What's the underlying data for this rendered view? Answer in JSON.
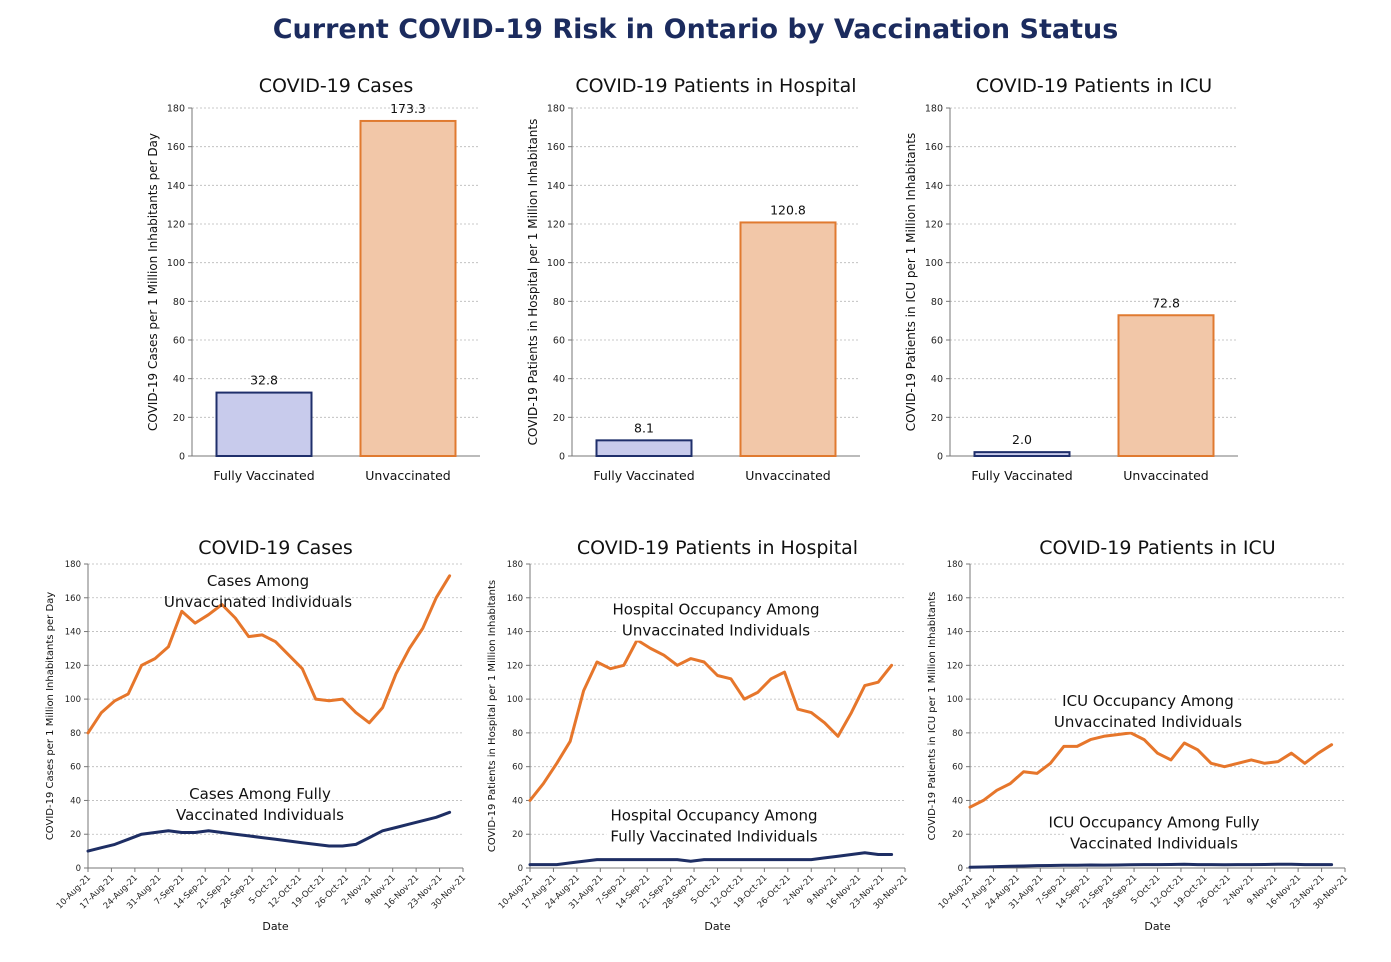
{
  "page": {
    "title": "Current COVID-19 Risk in Ontario by Vaccination Status"
  },
  "colors": {
    "vaccinated_fill": "#c8cbec",
    "vaccinated_stroke": "#1f2f6b",
    "unvaccinated_fill": "#f2c7a8",
    "unvaccinated_stroke": "#e07a30",
    "vaccinated_line": "#1e2e64",
    "unvaccinated_line": "#e6762b"
  },
  "chart_data": [
    {
      "type": "bar",
      "title": "COVID-19 Cases",
      "ylabel": "COVID-19 Cases per 1 Million Inhabitants per Day",
      "categories": [
        "Fully Vaccinated",
        "Unvaccinated"
      ],
      "values": [
        32.8,
        173.3
      ],
      "value_labels": [
        "32.8",
        "173.3"
      ],
      "ylim": [
        0,
        180
      ],
      "yticks": [
        "0",
        "20",
        "40",
        "60",
        "80",
        "100",
        "120",
        "140",
        "160",
        "180"
      ],
      "grid": true
    },
    {
      "type": "bar",
      "title": "COVID-19 Patients in Hospital",
      "ylabel": "COVID-19 Patients in Hospital per 1 Million Inhabitants",
      "categories": [
        "Fully Vaccinated",
        "Unvaccinated"
      ],
      "values": [
        8.1,
        120.8
      ],
      "value_labels": [
        "8.1",
        "120.8"
      ],
      "ylim": [
        0,
        180
      ],
      "yticks": [
        "0",
        "20",
        "40",
        "60",
        "80",
        "100",
        "120",
        "140",
        "160",
        "180"
      ],
      "grid": true
    },
    {
      "type": "bar",
      "title": "COVID-19 Patients in ICU",
      "ylabel": "COVID-19 Patients in ICU  per 1 Million Inhabitants",
      "categories": [
        "Fully Vaccinated",
        "Unvaccinated"
      ],
      "values": [
        2.0,
        72.8
      ],
      "value_labels": [
        "2.0",
        "72.8"
      ],
      "ylim": [
        0,
        180
      ],
      "yticks": [
        "0",
        "20",
        "40",
        "60",
        "80",
        "100",
        "120",
        "140",
        "160",
        "180"
      ],
      "grid": true
    },
    {
      "type": "line",
      "title": "COVID-19 Cases",
      "ylabel": "COVID-19 Cases per 1 Million Inhabitants per Day",
      "xlabel": "Date",
      "ylim": [
        0,
        180
      ],
      "yticks": [
        "0",
        "20",
        "40",
        "60",
        "80",
        "100",
        "120",
        "140",
        "160",
        "180"
      ],
      "xticks": [
        "10-Aug-21",
        "17-Aug-21",
        "24-Aug-21",
        "31-Aug-21",
        "7-Sep-21",
        "14-Sep-21",
        "21-Sep-21",
        "28-Sep-21",
        "5-Oct-21",
        "12-Oct-21",
        "19-Oct-21",
        "26-Oct-21",
        "2-Nov-21",
        "9-Nov-21",
        "16-Nov-21",
        "23-Nov-21",
        "30-Nov-21"
      ],
      "grid": true,
      "series": [
        {
          "name": "Cases Among Unvaccinated Individuals",
          "label_lines": [
            "Cases Among",
            "Unvaccinated Individuals"
          ],
          "x": [
            "10-Aug-21",
            "14-Aug-21",
            "18-Aug-21",
            "22-Aug-21",
            "26-Aug-21",
            "30-Aug-21",
            "3-Sep-21",
            "7-Sep-21",
            "11-Sep-21",
            "15-Sep-21",
            "19-Sep-21",
            "23-Sep-21",
            "27-Sep-21",
            "1-Oct-21",
            "5-Oct-21",
            "9-Oct-21",
            "13-Oct-21",
            "17-Oct-21",
            "21-Oct-21",
            "25-Oct-21",
            "29-Oct-21",
            "2-Nov-21",
            "6-Nov-21",
            "10-Nov-21",
            "14-Nov-21",
            "18-Nov-21",
            "22-Nov-21",
            "26-Nov-21"
          ],
          "y": [
            80,
            92,
            99,
            103,
            120,
            124,
            131,
            152,
            145,
            150,
            156,
            148,
            137,
            138,
            134,
            126,
            118,
            100,
            99,
            100,
            92,
            86,
            95,
            115,
            130,
            142,
            160,
            173
          ]
        },
        {
          "name": "Cases Among Fully Vaccinated Individuals",
          "label_lines": [
            "Cases Among Fully",
            "Vaccinated Individuals"
          ],
          "x": [
            "10-Aug-21",
            "14-Aug-21",
            "18-Aug-21",
            "22-Aug-21",
            "26-Aug-21",
            "30-Aug-21",
            "3-Sep-21",
            "7-Sep-21",
            "11-Sep-21",
            "15-Sep-21",
            "19-Sep-21",
            "23-Sep-21",
            "27-Sep-21",
            "1-Oct-21",
            "5-Oct-21",
            "9-Oct-21",
            "13-Oct-21",
            "17-Oct-21",
            "21-Oct-21",
            "25-Oct-21",
            "29-Oct-21",
            "2-Nov-21",
            "6-Nov-21",
            "10-Nov-21",
            "14-Nov-21",
            "18-Nov-21",
            "22-Nov-21",
            "26-Nov-21"
          ],
          "y": [
            10,
            12,
            14,
            17,
            20,
            21,
            22,
            21,
            21,
            22,
            21,
            20,
            19,
            18,
            17,
            16,
            15,
            14,
            13,
            13,
            14,
            18,
            22,
            24,
            26,
            28,
            30,
            33
          ]
        }
      ]
    },
    {
      "type": "line",
      "title": "COVID-19 Patients in Hospital",
      "ylabel": "COVID-19 Patients in Hospital per 1 Million Inhabitants",
      "xlabel": "Date",
      "ylim": [
        0,
        180
      ],
      "yticks": [
        "0",
        "20",
        "40",
        "60",
        "80",
        "100",
        "120",
        "140",
        "160",
        "180"
      ],
      "xticks": [
        "10-Aug-21",
        "17-Aug-21",
        "24-Aug-21",
        "31-Aug-21",
        "7-Sep-21",
        "14-Sep-21",
        "21-Sep-21",
        "28-Sep-21",
        "5-Oct-21",
        "12-Oct-21",
        "19-Oct-21",
        "26-Oct-21",
        "2-Nov-21",
        "9-Nov-21",
        "16-Nov-21",
        "23-Nov-21",
        "30-Nov-21"
      ],
      "grid": true,
      "series": [
        {
          "name": "Hospital Occupancy Among Unvaccinated Individuals",
          "label_lines": [
            "Hospital Occupancy Among",
            "Unvaccinated Individuals"
          ],
          "x": [
            "10-Aug-21",
            "14-Aug-21",
            "18-Aug-21",
            "22-Aug-21",
            "26-Aug-21",
            "30-Aug-21",
            "3-Sep-21",
            "7-Sep-21",
            "11-Sep-21",
            "15-Sep-21",
            "19-Sep-21",
            "23-Sep-21",
            "27-Sep-21",
            "1-Oct-21",
            "5-Oct-21",
            "9-Oct-21",
            "13-Oct-21",
            "17-Oct-21",
            "21-Oct-21",
            "25-Oct-21",
            "29-Oct-21",
            "2-Nov-21",
            "6-Nov-21",
            "10-Nov-21",
            "14-Nov-21",
            "18-Nov-21",
            "22-Nov-21",
            "26-Nov-21"
          ],
          "y": [
            40,
            50,
            62,
            75,
            105,
            122,
            118,
            120,
            135,
            130,
            126,
            120,
            124,
            122,
            114,
            112,
            100,
            104,
            112,
            116,
            94,
            92,
            86,
            78,
            92,
            108,
            110,
            120
          ]
        },
        {
          "name": "Hospital Occupancy Among Fully Vaccinated Individuals",
          "label_lines": [
            "Hospital Occupancy  Among",
            "Fully Vaccinated Individuals"
          ],
          "x": [
            "10-Aug-21",
            "14-Aug-21",
            "18-Aug-21",
            "22-Aug-21",
            "26-Aug-21",
            "30-Aug-21",
            "3-Sep-21",
            "7-Sep-21",
            "11-Sep-21",
            "15-Sep-21",
            "19-Sep-21",
            "23-Sep-21",
            "27-Sep-21",
            "1-Oct-21",
            "5-Oct-21",
            "9-Oct-21",
            "13-Oct-21",
            "17-Oct-21",
            "21-Oct-21",
            "25-Oct-21",
            "29-Oct-21",
            "2-Nov-21",
            "6-Nov-21",
            "10-Nov-21",
            "14-Nov-21",
            "18-Nov-21",
            "22-Nov-21",
            "26-Nov-21"
          ],
          "y": [
            2,
            2,
            2,
            3,
            4,
            5,
            5,
            5,
            5,
            5,
            5,
            5,
            4,
            5,
            5,
            5,
            5,
            5,
            5,
            5,
            5,
            5,
            6,
            7,
            8,
            9,
            8,
            8
          ]
        }
      ]
    },
    {
      "type": "line",
      "title": "COVID-19 Patients in ICU",
      "ylabel": "COVID-19 Patients in ICU  per 1 Million Inhabitants",
      "xlabel": "Date",
      "ylim": [
        0,
        180
      ],
      "yticks": [
        "0",
        "20",
        "40",
        "60",
        "80",
        "100",
        "120",
        "140",
        "160",
        "180"
      ],
      "xticks": [
        "10-Aug-21",
        "17-Aug-21",
        "24-Aug-21",
        "31-Aug-21",
        "7-Sep-21",
        "14-Sep-21",
        "21-Sep-21",
        "28-Sep-21",
        "5-Oct-21",
        "12-Oct-21",
        "19-Oct-21",
        "26-Oct-21",
        "2-Nov-21",
        "9-Nov-21",
        "16-Nov-21",
        "23-Nov-21",
        "30-Nov-21"
      ],
      "grid": true,
      "series": [
        {
          "name": "ICU Occupancy Among Unvaccinated Individuals",
          "label_lines": [
            "ICU Occupancy Among",
            "Unvaccinated Individuals"
          ],
          "x": [
            "10-Aug-21",
            "14-Aug-21",
            "18-Aug-21",
            "22-Aug-21",
            "26-Aug-21",
            "30-Aug-21",
            "3-Sep-21",
            "7-Sep-21",
            "11-Sep-21",
            "15-Sep-21",
            "19-Sep-21",
            "23-Sep-21",
            "27-Sep-21",
            "1-Oct-21",
            "5-Oct-21",
            "9-Oct-21",
            "13-Oct-21",
            "17-Oct-21",
            "21-Oct-21",
            "25-Oct-21",
            "29-Oct-21",
            "2-Nov-21",
            "6-Nov-21",
            "10-Nov-21",
            "14-Nov-21",
            "18-Nov-21",
            "22-Nov-21",
            "26-Nov-21"
          ],
          "y": [
            36,
            40,
            46,
            50,
            57,
            56,
            62,
            72,
            72,
            76,
            78,
            79,
            80,
            76,
            68,
            64,
            74,
            70,
            62,
            60,
            62,
            64,
            62,
            63,
            68,
            62,
            68,
            73
          ]
        },
        {
          "name": "ICU Occupancy Among Fully Vaccinated Individuals",
          "label_lines": [
            "ICU Occupancy Among Fully",
            "Vaccinated Individuals"
          ],
          "x": [
            "10-Aug-21",
            "14-Aug-21",
            "18-Aug-21",
            "22-Aug-21",
            "26-Aug-21",
            "30-Aug-21",
            "3-Sep-21",
            "7-Sep-21",
            "11-Sep-21",
            "15-Sep-21",
            "19-Sep-21",
            "23-Sep-21",
            "27-Sep-21",
            "1-Oct-21",
            "5-Oct-21",
            "9-Oct-21",
            "13-Oct-21",
            "17-Oct-21",
            "21-Oct-21",
            "25-Oct-21",
            "29-Oct-21",
            "2-Nov-21",
            "6-Nov-21",
            "10-Nov-21",
            "14-Nov-21",
            "18-Nov-21",
            "22-Nov-21",
            "26-Nov-21"
          ],
          "y": [
            0.5,
            0.6,
            0.8,
            1,
            1.2,
            1.4,
            1.5,
            1.6,
            1.6,
            1.8,
            1.7,
            1.8,
            1.9,
            2,
            2,
            2.1,
            2.2,
            2,
            2,
            1.9,
            2,
            2,
            2.1,
            2.2,
            2.2,
            2,
            2,
            2
          ]
        }
      ]
    }
  ]
}
